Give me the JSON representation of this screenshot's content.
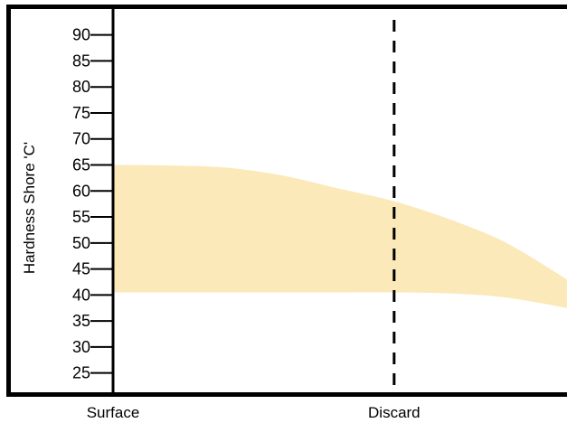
{
  "chart_data": {
    "type": "area",
    "title": "",
    "xlabel": "",
    "ylabel": "Hardness Shore 'C'",
    "ylim": [
      20.6,
      95.5
    ],
    "grid": false,
    "legend": "none",
    "x_categories": [
      "Surface",
      "Discard"
    ],
    "x_range": [
      0,
      1.615
    ],
    "series": [
      {
        "upper": {
          "x": [
            0,
            0.2,
            0.4,
            0.6,
            0.8,
            1.0,
            1.2,
            1.4,
            1.615
          ],
          "y": [
            65,
            64.9,
            64.5,
            63,
            60.5,
            58,
            54.5,
            50,
            43
          ]
        },
        "lower": {
          "x": [
            0,
            0.2,
            0.4,
            0.6,
            0.8,
            1.0,
            1.2,
            1.4,
            1.615
          ],
          "y": [
            40.5,
            40.5,
            40.5,
            40.5,
            40.5,
            40.5,
            40.3,
            39.5,
            37.5
          ]
        },
        "color": "#fbe9b9"
      }
    ],
    "yticks": [
      "90",
      "85",
      "80",
      "75",
      "70",
      "65",
      "60",
      "55",
      "50",
      "45",
      "40",
      "35",
      "30",
      "25"
    ],
    "discard_marker_x": 1.0
  },
  "colors": {
    "band": "#fbe9b9",
    "axis": "#000000",
    "background": "#ffffff"
  }
}
